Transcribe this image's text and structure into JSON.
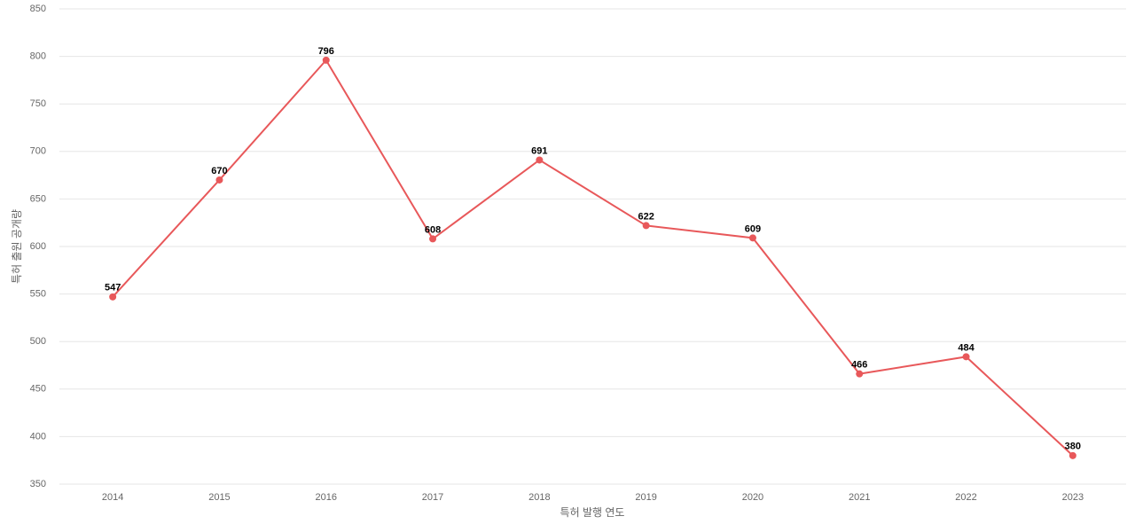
{
  "chart_data": {
    "type": "line",
    "categories": [
      "2014",
      "2015",
      "2016",
      "2017",
      "2018",
      "2019",
      "2020",
      "2021",
      "2022",
      "2023"
    ],
    "values": [
      547,
      670,
      796,
      608,
      691,
      622,
      609,
      466,
      484,
      380
    ],
    "color": "#e8585a",
    "x_label": "특허 발행 연도",
    "y_label": "특허 출원 공개량",
    "ylim": [
      350,
      850
    ],
    "yticks": [
      350,
      400,
      450,
      500,
      550,
      600,
      650,
      700,
      750,
      800,
      850
    ],
    "grid": true
  }
}
